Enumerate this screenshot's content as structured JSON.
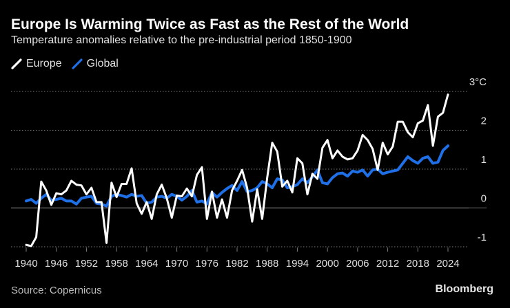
{
  "header": {
    "title": "Europe Is Warming Twice as Fast as the Rest of the World",
    "subtitle": "Temperature anomalies relative to the pre-industrial period 1850-1900"
  },
  "footer": {
    "source": "Source: Copernicus",
    "brand": "Bloomberg"
  },
  "colors": {
    "europe": "#ffffff",
    "global": "#1f6fe6",
    "grid": "#7a7a7a",
    "text": "#e0e0e0"
  },
  "chart_data": {
    "type": "line",
    "title": "Europe Is Warming Twice as Fast as the Rest of the World",
    "subtitle": "Temperature anomalies relative to the pre-industrial period 1850-1900",
    "xlabel": "",
    "ylabel": "",
    "xlim": [
      1940,
      2024
    ],
    "ylim": [
      -1,
      3
    ],
    "y_ticks": [
      -1,
      0,
      1,
      2,
      3
    ],
    "y_tick_labels": [
      "-1",
      "0",
      "1",
      "2",
      "3°C"
    ],
    "x_ticks": [
      1940,
      1946,
      1952,
      1958,
      1964,
      1970,
      1976,
      1982,
      1988,
      1994,
      2000,
      2006,
      2012,
      2018,
      2024
    ],
    "x_tick_labels": [
      "1940",
      "1946",
      "1952",
      "1958",
      "1964",
      "1970",
      "1976",
      "1982",
      "1988",
      "1994",
      "2000",
      "2006",
      "2012",
      "2018",
      "2024"
    ],
    "legend_position": "top-left",
    "grid": true,
    "x": [
      1940,
      1941,
      1942,
      1943,
      1944,
      1945,
      1946,
      1947,
      1948,
      1949,
      1950,
      1951,
      1952,
      1953,
      1954,
      1955,
      1956,
      1957,
      1958,
      1959,
      1960,
      1961,
      1962,
      1963,
      1964,
      1965,
      1966,
      1967,
      1968,
      1969,
      1970,
      1971,
      1972,
      1973,
      1974,
      1975,
      1976,
      1977,
      1978,
      1979,
      1980,
      1981,
      1982,
      1983,
      1984,
      1985,
      1986,
      1987,
      1988,
      1989,
      1990,
      1991,
      1992,
      1993,
      1994,
      1995,
      1996,
      1997,
      1998,
      1999,
      2000,
      2001,
      2002,
      2003,
      2004,
      2005,
      2006,
      2007,
      2008,
      2009,
      2010,
      2011,
      2012,
      2013,
      2014,
      2015,
      2016,
      2017,
      2018,
      2019,
      2020,
      2021,
      2022,
      2023,
      2024
    ],
    "series": [
      {
        "name": "Europe",
        "values": [
          -0.95,
          -0.98,
          -0.75,
          0.68,
          0.45,
          0.08,
          0.38,
          0.35,
          0.45,
          0.7,
          0.6,
          0.58,
          0.35,
          0.52,
          0.15,
          0.15,
          -0.9,
          0.65,
          0.28,
          0.62,
          0.62,
          1.02,
          0.12,
          -0.15,
          0.15,
          -0.28,
          0.35,
          0.6,
          0.25,
          -0.25,
          0.32,
          0.3,
          0.5,
          0.3,
          0.85,
          1.05,
          -0.28,
          0.42,
          -0.25,
          0.22,
          -0.25,
          0.45,
          0.7,
          0.98,
          0.52,
          -0.35,
          0.48,
          -0.28,
          0.78,
          1.68,
          1.45,
          0.55,
          0.7,
          0.4,
          1.28,
          1.15,
          0.35,
          0.88,
          0.75,
          1.55,
          1.75,
          1.28,
          1.48,
          1.32,
          1.25,
          1.28,
          1.48,
          1.88,
          1.75,
          1.52,
          0.98,
          1.68,
          1.38,
          1.58,
          2.22,
          2.22,
          1.95,
          1.82,
          2.18,
          2.25,
          2.65,
          1.6,
          2.35,
          2.45,
          2.92
        ]
      },
      {
        "name": "Global",
        "values": [
          0.18,
          0.22,
          0.12,
          0.25,
          0.35,
          0.2,
          0.22,
          0.25,
          0.18,
          0.18,
          0.1,
          0.25,
          0.28,
          0.3,
          0.12,
          0.1,
          0.05,
          0.3,
          0.35,
          0.32,
          0.28,
          0.35,
          0.3,
          0.32,
          0.12,
          0.15,
          0.28,
          0.3,
          0.25,
          0.35,
          0.3,
          0.2,
          0.3,
          0.45,
          0.15,
          0.18,
          0.1,
          0.4,
          0.28,
          0.4,
          0.5,
          0.58,
          0.45,
          0.68,
          0.42,
          0.45,
          0.52,
          0.68,
          0.62,
          0.52,
          0.75,
          0.72,
          0.52,
          0.55,
          0.6,
          0.75,
          0.65,
          0.8,
          0.98,
          0.65,
          0.62,
          0.78,
          0.88,
          0.9,
          0.82,
          0.95,
          0.92,
          0.98,
          0.82,
          0.98,
          1.0,
          0.88,
          0.92,
          0.95,
          0.98,
          1.15,
          1.32,
          1.22,
          1.15,
          1.28,
          1.32,
          1.15,
          1.18,
          1.48,
          1.6
        ]
      }
    ]
  }
}
